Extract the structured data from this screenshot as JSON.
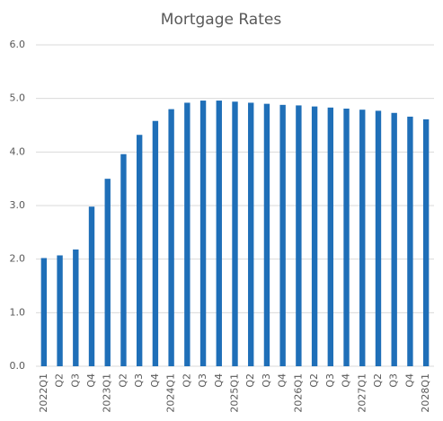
{
  "chart_data": {
    "type": "bar",
    "title": "Mortgage Rates",
    "categories": [
      "2022Q1",
      "Q2",
      "Q3",
      "Q4",
      "2023Q1",
      "Q2",
      "Q3",
      "Q4",
      "2024Q1",
      "Q2",
      "Q3",
      "Q4",
      "2025Q1",
      "Q2",
      "Q3",
      "Q4",
      "2026Q1",
      "Q2",
      "Q3",
      "Q4",
      "2027Q1",
      "Q2",
      "Q3",
      "Q4",
      "2028Q1"
    ],
    "values": [
      2.02,
      2.07,
      2.18,
      2.98,
      3.5,
      3.96,
      4.32,
      4.58,
      4.8,
      4.92,
      4.96,
      4.96,
      4.94,
      4.92,
      4.9,
      4.88,
      4.87,
      4.85,
      4.83,
      4.81,
      4.79,
      4.77,
      4.73,
      4.66,
      4.61
    ],
    "color": "#1f6fb8",
    "ylim": [
      0,
      6
    ],
    "yticks": [
      {
        "value": 0,
        "label": "0.0"
      },
      {
        "value": 1,
        "label": "1.0"
      },
      {
        "value": 2,
        "label": "2.0"
      },
      {
        "value": 3,
        "label": "3.0"
      },
      {
        "value": 4,
        "label": "4.0"
      },
      {
        "value": 5,
        "label": "5.0"
      },
      {
        "value": 6,
        "label": "6.0"
      }
    ],
    "grid": true
  }
}
